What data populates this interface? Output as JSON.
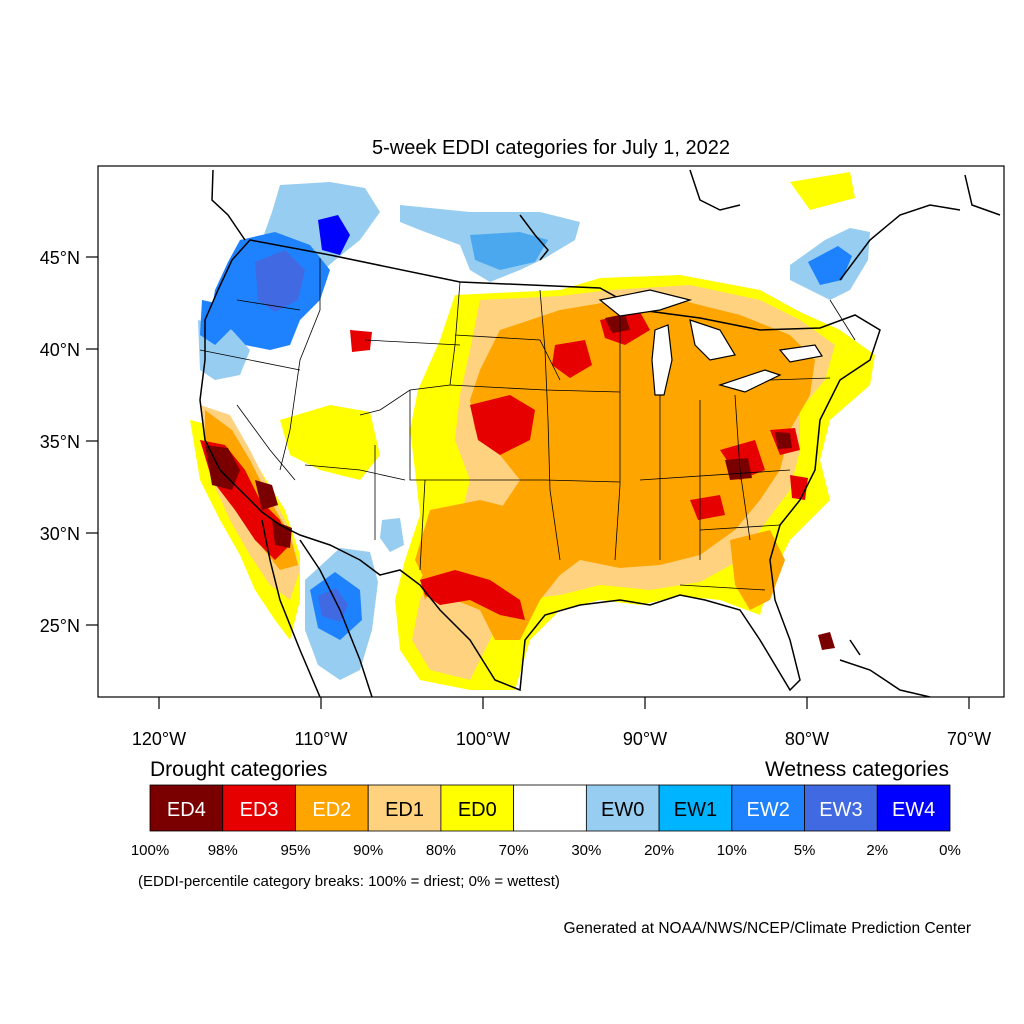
{
  "title": "5-week EDDI categories for July 1, 2022",
  "map": {
    "lat_ticks": [
      {
        "value": 45,
        "label": "45°N"
      },
      {
        "value": 40,
        "label": "40°N"
      },
      {
        "value": 35,
        "label": "35°N"
      },
      {
        "value": 30,
        "label": "30°N"
      },
      {
        "value": 25,
        "label": "25°N"
      }
    ],
    "lon_ticks": [
      {
        "value": -120,
        "label": "120°W"
      },
      {
        "value": -110,
        "label": "110°W"
      },
      {
        "value": -100,
        "label": "100°W"
      },
      {
        "value": -90,
        "label": "90°W"
      },
      {
        "value": -80,
        "label": "80°W"
      },
      {
        "value": -70,
        "label": "70°W"
      }
    ]
  },
  "legend": {
    "drought_heading": "Drought categories",
    "wetness_heading": "Wetness categories",
    "categories": [
      {
        "label": "ED4",
        "color": "#7a0000",
        "text_color": "#ffffff"
      },
      {
        "label": "ED3",
        "color": "#e60000",
        "text_color": "#ffffff"
      },
      {
        "label": "ED2",
        "color": "#ffa500",
        "text_color": "#ffffff"
      },
      {
        "label": "ED1",
        "color": "#ffd27f",
        "text_color": "#000000"
      },
      {
        "label": "ED0",
        "color": "#ffff00",
        "text_color": "#000000"
      },
      {
        "label": "",
        "color": "#ffffff",
        "text_color": "#000000"
      },
      {
        "label": "EW0",
        "color": "#96cdf0",
        "text_color": "#000000"
      },
      {
        "label": "EW1",
        "color": "#00b4ff",
        "text_color": "#000000"
      },
      {
        "label": "EW2",
        "color": "#1e82ff",
        "text_color": "#ffffff"
      },
      {
        "label": "EW3",
        "color": "#4169e1",
        "text_color": "#ffffff"
      },
      {
        "label": "EW4",
        "color": "#0000ff",
        "text_color": "#ffffff"
      }
    ],
    "breaks": [
      "100%",
      "98%",
      "95%",
      "90%",
      "80%",
      "70%",
      "30%",
      "20%",
      "10%",
      "5%",
      "2%",
      "0%"
    ],
    "note": "(EDDI-percentile category breaks: 100% = driest; 0% = wettest)"
  },
  "credit": "Generated at NOAA/NWS/NCEP/Climate Prediction Center"
}
